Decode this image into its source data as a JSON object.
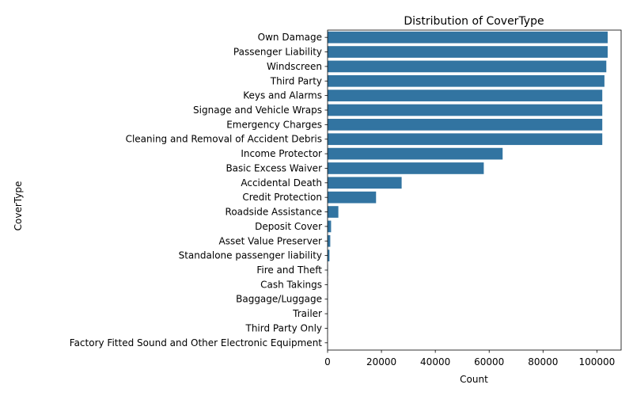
{
  "chart_data": {
    "type": "bar",
    "orientation": "horizontal",
    "title": "Distribution of CoverType",
    "xlabel": "Count",
    "ylabel": "CoverType",
    "xlim": [
      0,
      109000
    ],
    "xticks": [
      0,
      20000,
      40000,
      60000,
      80000,
      100000
    ],
    "grid": false,
    "bar_color": "#3274a1",
    "categories": [
      "Own Damage",
      "Passenger Liability",
      "Windscreen",
      "Third Party",
      "Keys and Alarms",
      "Signage and Vehicle Wraps",
      "Emergency Charges",
      "Cleaning and Removal of Accident Debris",
      "Income Protector",
      "Basic Excess Waiver",
      "Accidental Death",
      "Credit Protection",
      "Roadside Assistance",
      "Deposit Cover",
      "Asset Value Preserver",
      "Standalone passenger liability",
      "Fire and Theft",
      "Cash Takings",
      "Baggage/Luggage",
      "Trailer",
      "Third Party Only",
      "Factory Fitted Sound and Other Electronic Equipment"
    ],
    "values": [
      104000,
      104000,
      103500,
      102800,
      102000,
      102000,
      102000,
      102000,
      65000,
      58000,
      27500,
      18000,
      4000,
      1300,
      1000,
      700,
      150,
      100,
      80,
      60,
      40,
      20
    ]
  }
}
